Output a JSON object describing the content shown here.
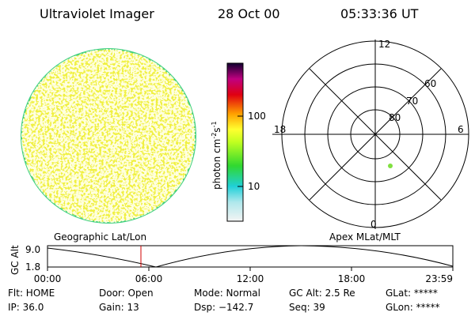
{
  "title": {
    "instrument": "Ultraviolet Imager",
    "date": "28 Oct 00",
    "time": "05:33:36 UT"
  },
  "colorbar": {
    "unit": "photon cm",
    "exp1": "-2",
    "per": "s",
    "exp2": "-1",
    "ticks": [
      "100",
      "10"
    ]
  },
  "polar": {
    "top": "12",
    "bottom": "0",
    "left": "18",
    "right": "6",
    "rings": [
      "60",
      "70",
      "80"
    ]
  },
  "timeline": {
    "left_label": "Geographic Lat/Lon",
    "right_label": "Apex MLat/MLT",
    "axis_label": "GC Alt",
    "yticks": [
      "9.0",
      "1.8"
    ],
    "xticks": [
      "00:00",
      "06:00",
      "12:00",
      "18:00",
      "23:59"
    ]
  },
  "info": {
    "rows": [
      [
        "Flt: HOME",
        "Door: Open",
        "Mode: Normal",
        "GC Alt: 2.5 Re",
        "GLat: *****"
      ],
      [
        "IP: 36.0",
        "Gain: 13",
        "Dsp: −142.7",
        "Seq: 39",
        "GLon: *****"
      ]
    ]
  }
}
